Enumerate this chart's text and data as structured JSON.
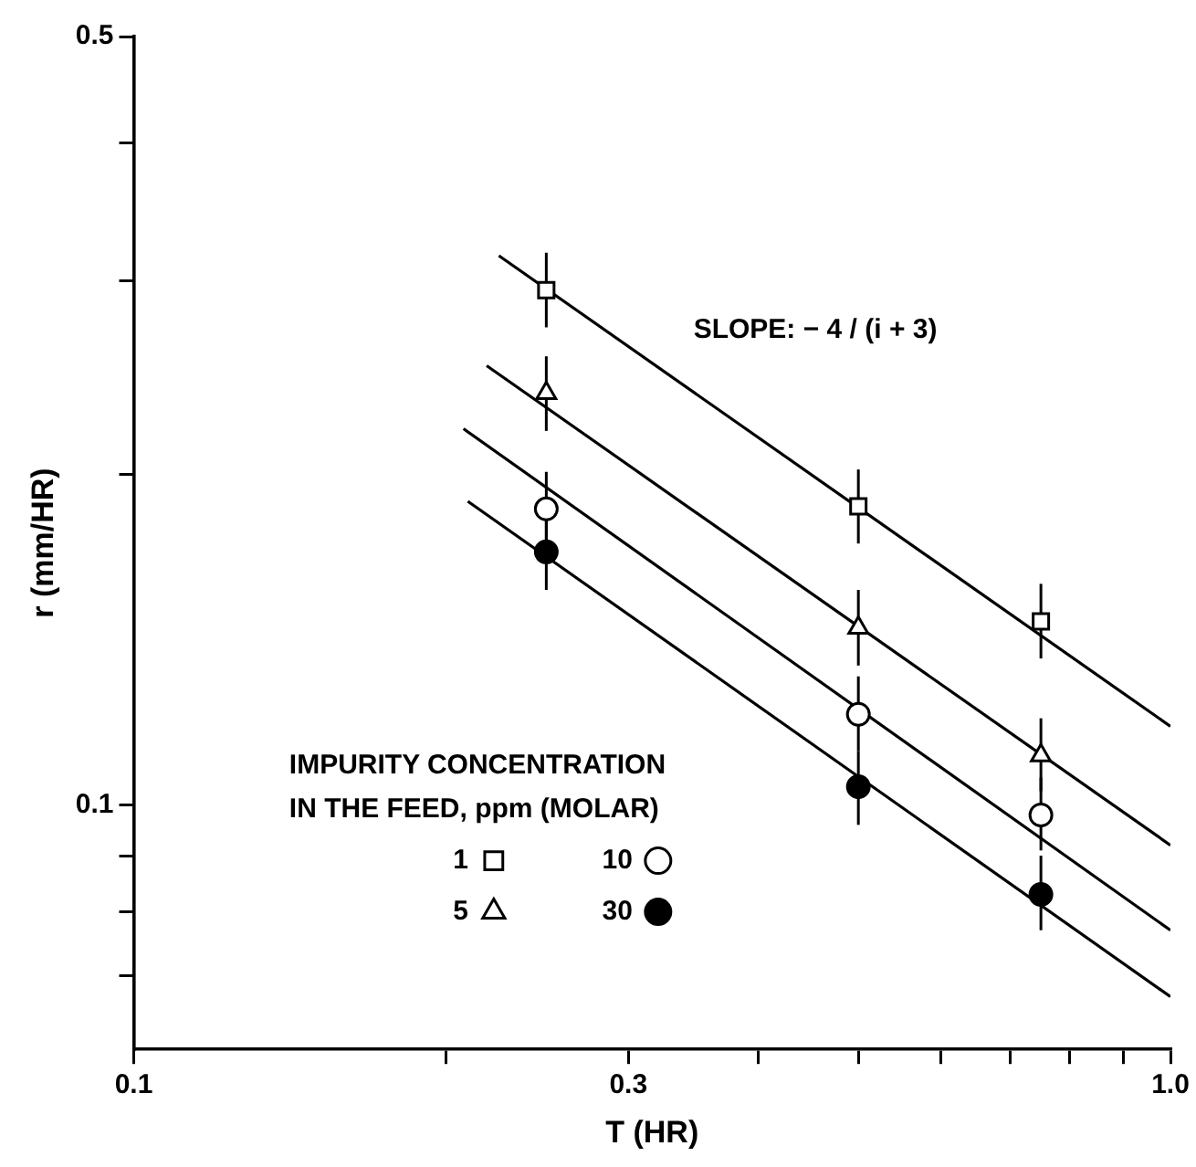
{
  "chart_data": {
    "type": "scatter",
    "xlabel": "T (HR)",
    "ylabel": "r (mm/HR)",
    "log": "xy",
    "legend": "bottom left",
    "legend_title": "IMPURITY CONCENTRATION\nIN THE FEED, ppm (MOLAR)",
    "xlim": [
      0.1,
      1.0
    ],
    "ylim": [
      0.06,
      0.5
    ],
    "xticks": [
      0.1,
      {
        "value": 0.2,
        "label": null
      },
      0.3,
      {
        "value": 0.4,
        "label": null
      },
      {
        "value": 0.5,
        "label": null
      },
      {
        "value": 0.6,
        "label": null
      },
      {
        "value": 0.7,
        "label": null
      },
      {
        "value": 0.8,
        "label": null
      },
      {
        "value": 0.9,
        "label": null
      },
      {
        "value": 1.0,
        "label": "1.0"
      }
    ],
    "yticks": [
      {
        "value": 0.07,
        "label": null
      },
      {
        "value": 0.08,
        "label": null
      },
      {
        "value": 0.09,
        "label": null
      },
      0.1,
      {
        "value": 0.2,
        "label": null
      },
      {
        "value": 0.3,
        "label": null
      },
      {
        "value": 0.4,
        "label": null
      },
      0.5
    ],
    "annotations": [
      "SLOPE: − 4 / (i + 3)"
    ],
    "series": [
      {
        "name": "1",
        "marker": "square",
        "color": "#ffffff",
        "x": [
          0.25,
          0.5,
          0.75
        ],
        "values": [
          0.294,
          0.187,
          0.147
        ],
        "errors": [
          [
            0.272,
            0.318
          ],
          [
            0.173,
            0.202
          ],
          [
            0.136,
            0.159
          ]
        ]
      },
      {
        "name": "5",
        "marker": "triangle",
        "color": "#ffffff",
        "x": [
          0.25,
          0.5,
          0.75
        ],
        "values": [
          0.237,
          0.145,
          0.111
        ],
        "errors": [
          [
            0.219,
            0.256
          ],
          [
            0.134,
            0.157
          ],
          [
            0.103,
            0.12
          ]
        ]
      },
      {
        "name": "10",
        "marker": "circle",
        "color": "#ffffff",
        "x": [
          0.25,
          0.5,
          0.75
        ],
        "values": [
          0.186,
          0.121,
          0.098
        ],
        "errors": [
          [
            0.172,
            0.201
          ],
          [
            0.112,
            0.131
          ],
          [
            0.091,
            0.106
          ]
        ]
      },
      {
        "name": "30",
        "marker": "circle",
        "color": "#000000",
        "x": [
          0.25,
          0.5,
          0.75
        ],
        "values": [
          0.17,
          0.104,
          0.083
        ],
        "errors": [
          [
            0.157,
            0.184
          ],
          [
            0.096,
            0.112
          ],
          [
            0.077,
            0.09
          ]
        ]
      },
      {
        "type": "line",
        "marker": "none",
        "color": "#000000",
        "x": [
          0.225,
          1.0
        ],
        "values": [
          0.316,
          0.118
        ]
      },
      {
        "type": "line",
        "marker": "none",
        "color": "#000000",
        "x": [
          0.219,
          1.0
        ],
        "values": [
          0.251,
          0.092
        ]
      },
      {
        "type": "line",
        "marker": "none",
        "color": "#000000",
        "x": [
          0.208,
          1.0
        ],
        "values": [
          0.22,
          0.077
        ]
      },
      {
        "type": "line",
        "marker": "none",
        "color": "#000000",
        "x": [
          0.21,
          1.0
        ],
        "values": [
          0.189,
          0.067
        ]
      }
    ]
  }
}
